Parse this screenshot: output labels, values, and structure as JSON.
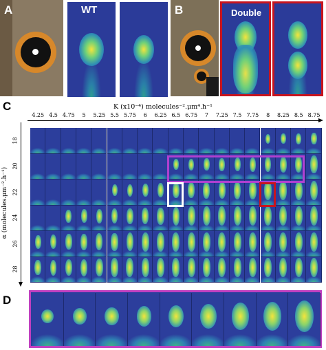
{
  "panel_labels": {
    "a": "A",
    "b": "B",
    "c": "C",
    "d": "D"
  },
  "top": {
    "wt_label": "WT",
    "double_label": "Double"
  },
  "grid": {
    "x_axis_title": "K (x10⁻⁴) molecules⁻².μm⁴.h⁻¹",
    "y_axis_title": "α (molecules.μm⁻².h⁻¹)",
    "x_ticks": [
      "4.25",
      "4.5",
      "4.75",
      "5",
      "5.25",
      "5.5",
      "5.75",
      "6",
      "6.25",
      "6.5",
      "6.75",
      "7",
      "7.25",
      "7.5",
      "7.75",
      "8",
      "8.25",
      "8.5",
      "8.75"
    ],
    "y_ticks": [
      "18",
      "20",
      "22",
      "24",
      "26",
      "28"
    ],
    "highlight_colors": {
      "magenta": "#b040d0",
      "white": "#ffffff",
      "red": "#c8141e"
    }
  },
  "colors": {
    "background": "#2c3e9c",
    "spot_core": "#f2e23a",
    "spot_mid": "#3bb6a0"
  }
}
